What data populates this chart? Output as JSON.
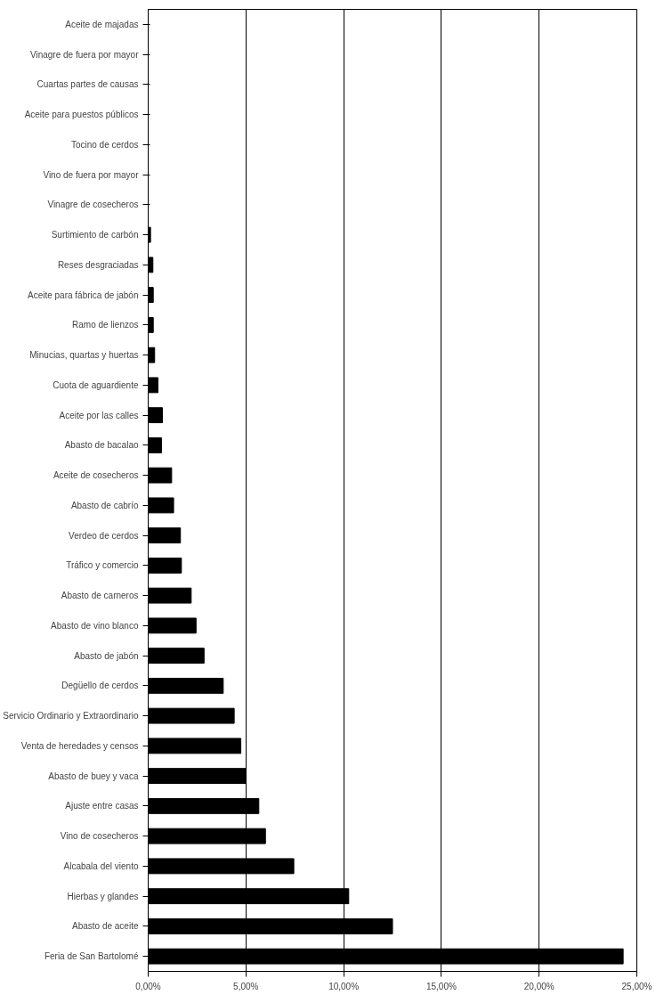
{
  "chart_data": {
    "type": "bar",
    "orientation": "horizontal",
    "categories": [
      "Aceite de majadas",
      "Vinagre de fuera por mayor",
      "Cuartas partes de causas",
      "Aceite para puestos públicos",
      "Tocino de cerdos",
      "Vino de fuera por mayor",
      "Vinagre de cosecheros",
      "Surtimiento de carbón",
      "Reses desgraciadas",
      "Aceite para fábrica de jabón",
      "Ramo de lienzos",
      "Minucias, quartas y huertas",
      "Cuota de aguardiente",
      "Aceite por las calles",
      "Abasto de bacalao",
      "Aceite de cosecheros",
      "Abasto de cabrío",
      "Verdeo de cerdos",
      "Tráfico y comercio",
      "Abasto de carneros",
      "Abasto de vino blanco",
      "Abasto de jabón",
      "Degüello de cerdos",
      "Servicio Ordinario y Extraordinario",
      "Venta de heredades y censos",
      "Abasto de buey y vaca",
      "Ajuste entre casas",
      "Vino de cosecheros",
      "Alcabala del viento",
      "Hierbas y glandes",
      "Abasto de aceite",
      "Feria de San Bartolomé"
    ],
    "values": [
      0,
      0,
      0,
      0,
      0,
      0,
      0,
      0.12,
      0.24,
      0.26,
      0.26,
      0.33,
      0.5,
      0.73,
      0.68,
      1.2,
      1.3,
      1.65,
      1.7,
      2.2,
      2.45,
      2.86,
      3.84,
      4.4,
      4.74,
      5.0,
      5.66,
      6.0,
      7.45,
      10.26,
      12.5,
      24.3
    ],
    "color": "#000000",
    "xlim": [
      0,
      25
    ],
    "xticks": [
      {
        "value": 0,
        "label": "0,00%"
      },
      {
        "value": 5,
        "label": "5,00%"
      },
      {
        "value": 10,
        "label": "10,00%"
      },
      {
        "value": 15,
        "label": "15,00%"
      },
      {
        "value": 20,
        "label": "20,00%"
      },
      {
        "value": 25,
        "label": "25,00%"
      }
    ],
    "grid": "x"
  }
}
